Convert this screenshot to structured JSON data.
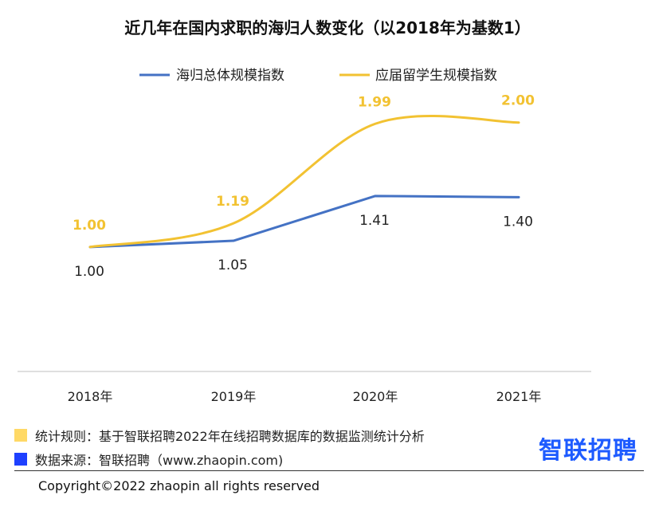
{
  "chart_data": {
    "type": "line",
    "title": "近几年在国内求职的海归人数变化（以2018年为基数1）",
    "categories": [
      "2018年",
      "2019年",
      "2020年",
      "2021年"
    ],
    "series": [
      {
        "name": "海归总体规模指数",
        "values": [
          1.0,
          1.05,
          1.41,
          1.4
        ],
        "labels": [
          "1.00",
          "1.05",
          "1.41",
          "1.40"
        ],
        "color": "#4472C4",
        "smooth": false
      },
      {
        "name": "应届留学生规模指数",
        "values": [
          1.0,
          1.19,
          1.99,
          2.0
        ],
        "labels": [
          "1.00",
          "1.19",
          "1.99",
          "2.00"
        ],
        "color": "#F2C232",
        "smooth": true
      }
    ],
    "ylim": [
      0.0,
      2.6
    ],
    "grid": false,
    "legend": "top"
  },
  "footer": {
    "rule_note": "统计规则：基于智联招聘2022年在线招聘数据库的数据监测统计分析",
    "source_note": "数据来源：智联招聘（www.zhaopin.com)",
    "brand": "智联招聘",
    "copyright": "Copyright©2022 zhaopin all rights reserved",
    "rule_color": "#FFD966",
    "source_color": "#1E40FF",
    "brand_color": "#1E5BFF"
  }
}
